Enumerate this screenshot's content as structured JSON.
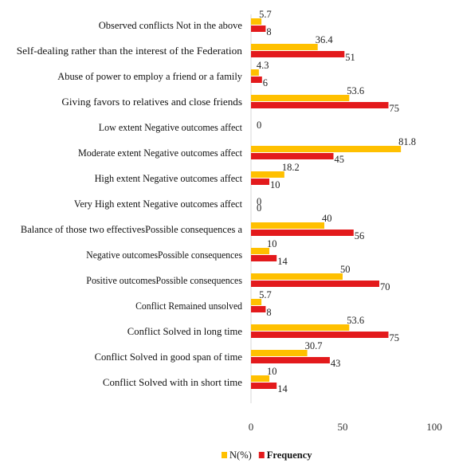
{
  "chart_data": {
    "type": "bar",
    "orientation": "horizontal",
    "categories": [
      "Observed conflicts Not in the above",
      "Self-dealing rather than the interest of the Federation",
      "Abuse of power to employ a friend or a family",
      "Giving favors to relatives and close friends",
      "Low extent Negative outcomes affect",
      "Moderate extent Negative outcomes affect",
      "High extent Negative outcomes affect",
      "Very High extent Negative outcomes affect",
      "Balance of those two effectivesPossible consequences a",
      "Negative outcomesPossible consequences",
      "Positive outcomesPossible consequences",
      "Conflict Remained unsolved",
      "Conflict Solved in long time",
      "Conflict Solved in good span of time",
      "Conflict Solved with in short time"
    ],
    "series": [
      {
        "name": "N(%)",
        "color": "#FFC000",
        "values": [
          5.7,
          36.4,
          4.3,
          53.6,
          0,
          81.8,
          18.2,
          0,
          40,
          10,
          50,
          5.7,
          53.6,
          30.7,
          10
        ],
        "labels": [
          "5.7",
          "36.4",
          "4.3",
          "53.6",
          "0",
          "81.8",
          "18.2",
          "0",
          "40",
          "10",
          "50",
          "5.7",
          "53.6",
          "30.7",
          "10"
        ]
      },
      {
        "name": "Frequency",
        "color": "#E31A1C",
        "values": [
          8,
          51,
          6,
          75,
          0,
          45,
          10,
          0,
          56,
          14,
          70,
          8,
          75,
          43,
          14
        ],
        "labels": [
          "8",
          "51",
          "6",
          "75",
          "",
          "45",
          "10",
          "0",
          "56",
          "14",
          "70",
          "8",
          "75",
          "43",
          "14"
        ]
      }
    ],
    "xlim": [
      0,
      100
    ],
    "xticks": [
      "0",
      "50",
      "100"
    ],
    "grid": false,
    "legend_position": "bottom",
    "title": "",
    "xlabel": "",
    "ylabel": ""
  }
}
